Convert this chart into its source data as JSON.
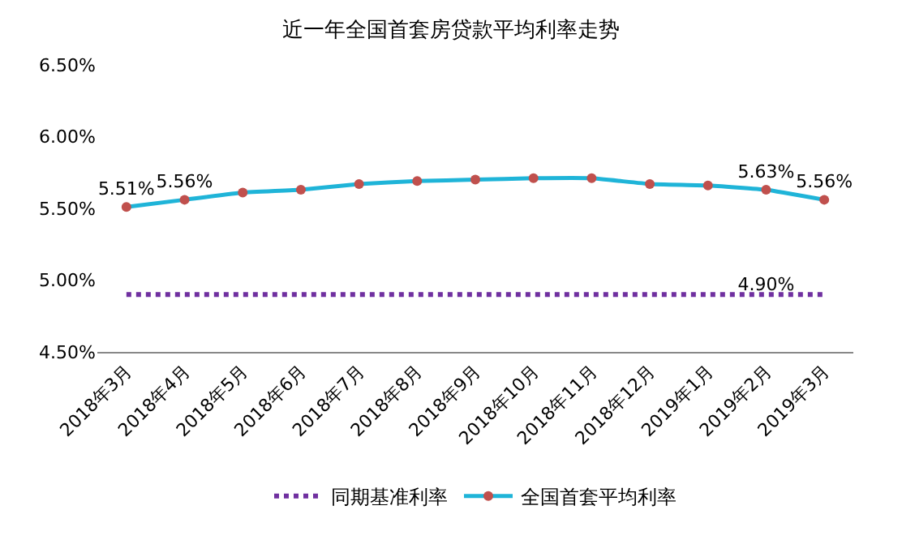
{
  "chart_data": {
    "type": "line",
    "title": "近一年全国首套房贷款平均利率走势",
    "categories": [
      "2018年3月",
      "2018年4月",
      "2018年5月",
      "2018年6月",
      "2018年7月",
      "2018年8月",
      "2018年9月",
      "2018年10月",
      "2018年11月",
      "2018年12月",
      "2019年1月",
      "2019年2月",
      "2019年3月"
    ],
    "series": [
      {
        "name": "同期基准利率",
        "color": "#7030a0",
        "line_style": "dotted",
        "marker": "none",
        "values": [
          4.9,
          4.9,
          4.9,
          4.9,
          4.9,
          4.9,
          4.9,
          4.9,
          4.9,
          4.9,
          4.9,
          4.9,
          4.9
        ],
        "value_labels": [
          null,
          null,
          null,
          null,
          null,
          null,
          null,
          null,
          null,
          null,
          null,
          "4.90%",
          null
        ]
      },
      {
        "name": "全国首套平均利率",
        "color": "#1fb4d8",
        "line_style": "solid",
        "marker": "circle",
        "values": [
          5.51,
          5.56,
          5.61,
          5.63,
          5.67,
          5.69,
          5.7,
          5.71,
          5.71,
          5.67,
          5.66,
          5.63,
          5.56
        ],
        "value_labels": [
          "5.51%",
          "5.56%",
          null,
          null,
          null,
          null,
          null,
          null,
          null,
          null,
          null,
          "5.63%",
          "5.56%"
        ]
      }
    ],
    "ylim": [
      4.5,
      6.5
    ],
    "yticks": [
      {
        "value": 4.5,
        "label": "4.50%"
      },
      {
        "value": 5.0,
        "label": "5.00%"
      },
      {
        "value": 5.5,
        "label": "5.50%"
      },
      {
        "value": 6.0,
        "label": "6.00%"
      },
      {
        "value": 6.5,
        "label": "6.50%"
      }
    ],
    "legend": "bottom"
  }
}
